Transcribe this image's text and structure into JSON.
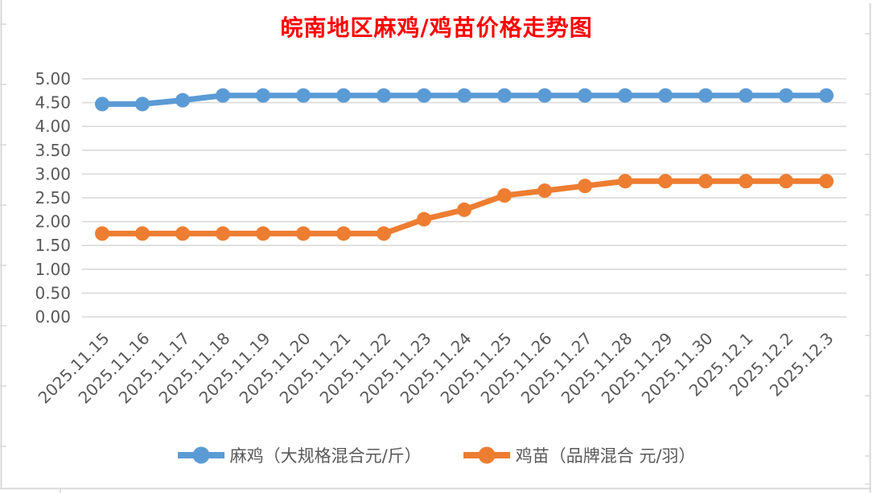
{
  "chart_data": {
    "type": "line",
    "title": "皖南地区麻鸡/鸡苗价格走势图",
    "title_color": "#FF0000",
    "categories": [
      "2025.11.15",
      "2025.11.16",
      "2025.11.17",
      "2025.11.18",
      "2025.11.19",
      "2025.11.20",
      "2025.11.21",
      "2025.11.22",
      "2025.11.23",
      "2025.11.24",
      "2025.11.25",
      "2025.11.26",
      "2025.11.27",
      "2025.11.28",
      "2025.11.29",
      "2025.11.30",
      "2025.12.1",
      "2025.12.2",
      "2025.12.3"
    ],
    "series": [
      {
        "name": "麻鸡（大规格混合元/斤）",
        "color": "#5B9BD5",
        "marker": "circle",
        "values": [
          4.47,
          4.47,
          4.55,
          4.65,
          4.65,
          4.65,
          4.65,
          4.65,
          4.65,
          4.65,
          4.65,
          4.65,
          4.65,
          4.65,
          4.65,
          4.65,
          4.65,
          4.65,
          4.65
        ]
      },
      {
        "name": "鸡苗（品牌混合 元/羽）",
        "color": "#ED7D31",
        "marker": "circle",
        "values": [
          1.75,
          1.75,
          1.75,
          1.75,
          1.75,
          1.75,
          1.75,
          1.75,
          2.05,
          2.25,
          2.55,
          2.65,
          2.75,
          2.85,
          2.85,
          2.85,
          2.85,
          2.85,
          2.85
        ]
      }
    ],
    "xlabel": "",
    "ylabel": "",
    "ylim": [
      0,
      5
    ],
    "ytick_step": 0.5,
    "ytick_labels": [
      "5.00",
      "4.50",
      "4.00",
      "3.50",
      "3.00",
      "2.50",
      "2.00",
      "1.50",
      "1.00",
      "0.50",
      "0.00"
    ],
    "grid": true,
    "gridline_color": "#D9D9D9",
    "axis_text_color": "#595959",
    "x_label_rotation_deg": 45,
    "legend_position": "bottom",
    "background": "#FFFFFF",
    "sheet_edge_color": "#D9D9D9"
  }
}
